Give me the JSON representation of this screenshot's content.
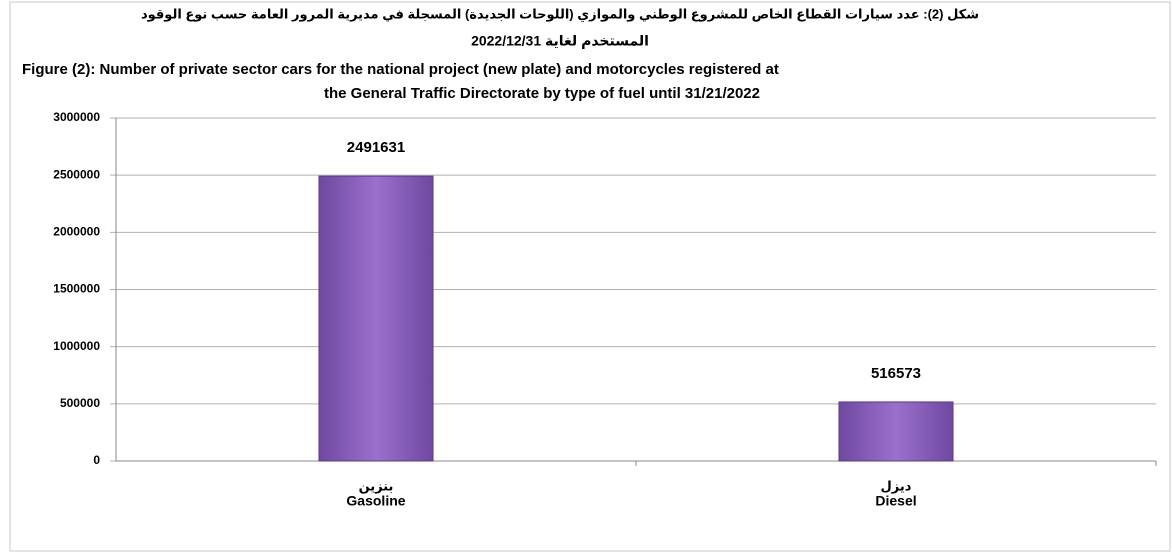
{
  "chart_data": {
    "type": "bar",
    "title_ar": [
      "شكل (2): عدد سيارات القطاع الخاص للمشروع الوطني والموازي (اللوحات الجديدة) المسجلة في مديرية المرور العامة حسب نوع الوقود",
      "المستخدم لغاية 2022/12/31"
    ],
    "title": [
      "Figure (2): Number of private sector cars for the national project (new plate) and motorcycles registered at",
      "the General Traffic Directorate by type of fuel until 31/21/2022"
    ],
    "categories_ar": [
      "بنزين",
      "ديزل"
    ],
    "categories": [
      "Gasoline",
      "Diesel"
    ],
    "values": [
      2491631,
      516573
    ],
    "color": "#8a60bd",
    "ylim": [
      0,
      3000000
    ],
    "yticks": [
      0,
      500000,
      1000000,
      1500000,
      2000000,
      2500000,
      3000000
    ],
    "grid": true
  }
}
